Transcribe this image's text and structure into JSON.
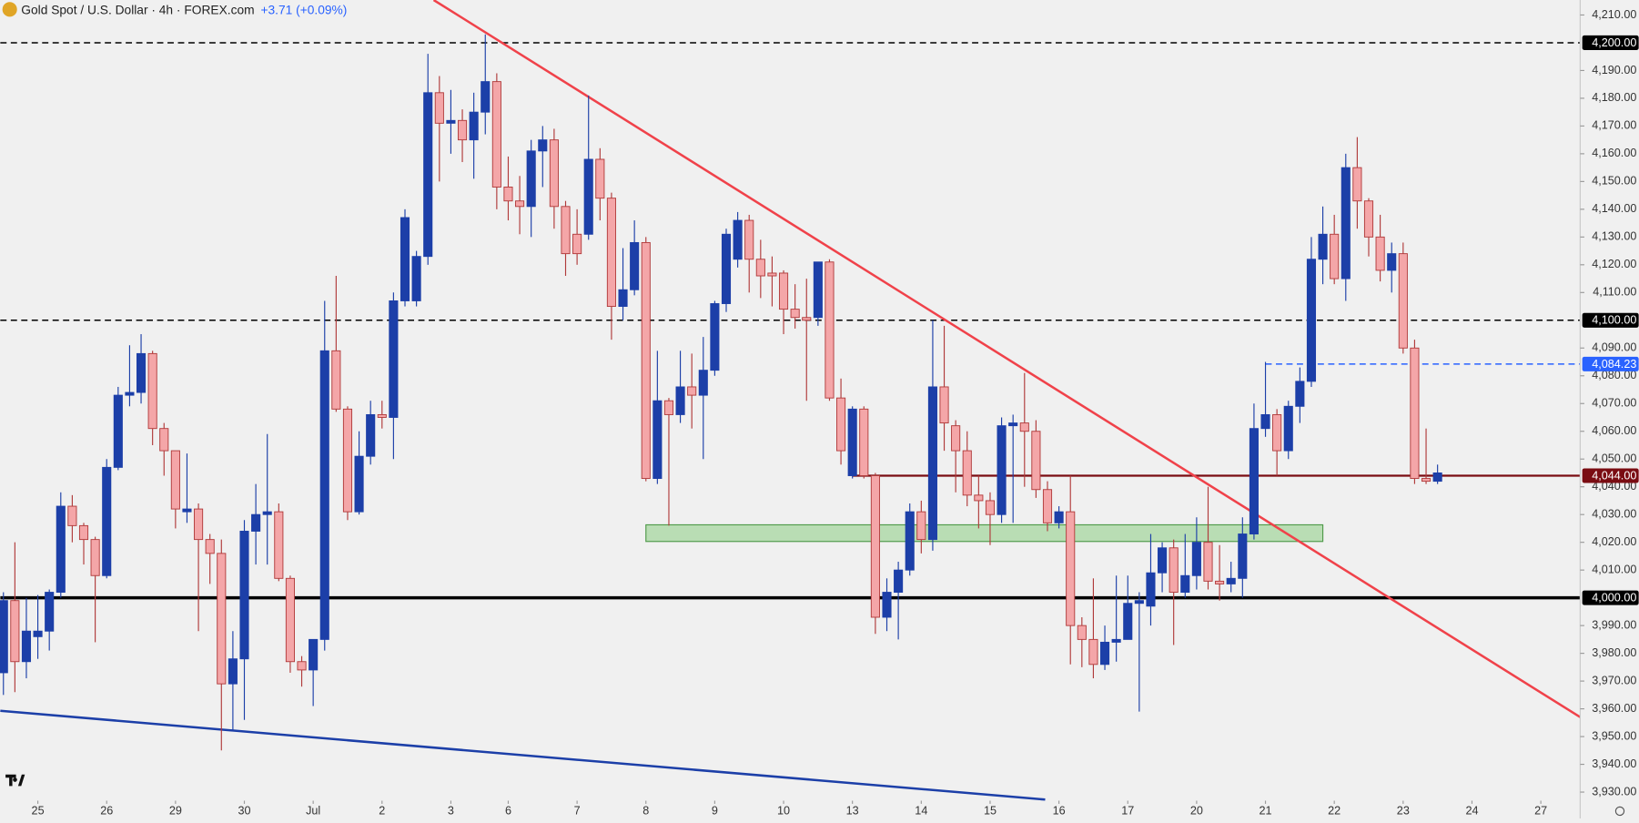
{
  "chart_data": {
    "type": "candlestick",
    "title": "Gold Spot / U.S. Dollar · 4h · FOREX.com",
    "change": "+3.71 (+0.09%)",
    "up_color": "#1c3fa8",
    "down_color": "#f4a6a8",
    "down_edge": "#b03a3a",
    "series": [
      {
        "open": [
          3973,
          3999,
          3977,
          3986,
          3988,
          4002,
          4033,
          4026,
          4021,
          4008,
          4047,
          4073,
          4074,
          4088,
          4061,
          4053,
          4031,
          4032,
          4021,
          4016,
          3969,
          3978,
          4024,
          4030,
          4031,
          4007,
          3977,
          3974,
          3985,
          4089,
          4068,
          4031,
          4051,
          4066,
          4065,
          4107,
          4107,
          4123,
          4182,
          4171,
          4172,
          4165,
          4175,
          4186,
          4148,
          4143,
          4141,
          4161,
          4165,
          4141,
          4131,
          4131,
          4158,
          4144,
          4105,
          4111,
          4128,
          4043,
          4071,
          4066,
          4076,
          4073,
          4082,
          4106,
          4122,
          4136,
          4122,
          4117,
          4117,
          4104,
          4101,
          4101,
          4121,
          4072,
          4044,
          4068,
          4044,
          3993,
          4002,
          4010,
          4031,
          4021,
          4076,
          4062,
          4053,
          4037,
          4035,
          4030,
          4062,
          4063,
          4060,
          4039,
          4027,
          4031,
          3990,
          3985,
          3976,
          3984,
          3985,
          3998,
          3997,
          4009,
          4018,
          4002,
          4008,
          4020,
          4006,
          4005,
          4007,
          4023,
          4061,
          4066,
          4053,
          4069,
          4078,
          4122,
          4131,
          4115,
          4155,
          4143,
          4130,
          4118,
          4124,
          4090,
          4043,
          4042
        ],
        "high": [
          4002,
          4020,
          4000,
          4001,
          4003,
          4038,
          4037,
          4027,
          4022,
          4050,
          4076,
          4091,
          4095,
          4089,
          4063,
          4053,
          4052,
          4034,
          4023,
          4021,
          3988,
          4028,
          4041,
          4059,
          4034,
          4008,
          3979,
          3985,
          4107,
          4116,
          4069,
          4060,
          4071,
          4071,
          4110,
          4140,
          4125,
          4196,
          4188,
          4183,
          4176,
          4182,
          4203,
          4189,
          4159,
          4152,
          4165,
          4170,
          4169,
          4143,
          4140,
          4181,
          4162,
          4146,
          4126,
          4136,
          4130,
          4089,
          4072,
          4089,
          4088,
          4094,
          4107,
          4133,
          4139,
          4138,
          4129,
          4123,
          4118,
          4113,
          4115,
          4121,
          4122,
          4079,
          4069,
          4069,
          4045,
          4007,
          4013,
          4034,
          4035,
          4100,
          4098,
          4064,
          4060,
          4044,
          4038,
          4065,
          4066,
          4081,
          4064,
          4042,
          4033,
          4044,
          3993,
          4007,
          3990,
          4008,
          4008,
          4002,
          4023,
          4020,
          4021,
          4023,
          4029,
          4040,
          4019,
          4013,
          4029,
          4070,
          4085,
          4068,
          4071,
          4083,
          4130,
          4141,
          4138,
          4160,
          4166,
          4144,
          4138,
          4128,
          4128,
          4093,
          4061,
          4048
        ],
        "low": [
          3965,
          3966,
          3971,
          3978,
          3981,
          4000,
          4020,
          4012,
          3984,
          4007,
          4046,
          4069,
          4070,
          4055,
          4044,
          4025,
          4027,
          3988,
          4005,
          3945,
          3952,
          3956,
          4012,
          4012,
          4006,
          3973,
          3968,
          3961,
          3981,
          4067,
          4028,
          4030,
          4048,
          4061,
          4050,
          4105,
          4105,
          4120,
          4150,
          4160,
          4157,
          4151,
          4167,
          4140,
          4136,
          4131,
          4130,
          4148,
          4133,
          4116,
          4120,
          4129,
          4136,
          4093,
          4100,
          4109,
          4042,
          4041,
          4026,
          4063,
          4061,
          4050,
          4080,
          4103,
          4119,
          4110,
          4108,
          4105,
          4095,
          4097,
          4071,
          4098,
          4071,
          4048,
          4043,
          4043,
          3987,
          3988,
          3985,
          4008,
          4016,
          4017,
          4053,
          4038,
          4033,
          4025,
          4019,
          4027,
          4027,
          4040,
          4036,
          4024,
          4025,
          3976,
          3975,
          3971,
          3974,
          3977,
          3985,
          3959,
          3990,
          4002,
          3983,
          4000,
          4003,
          4003,
          3999,
          4002,
          4000,
          4021,
          4058,
          4044,
          4050,
          4063,
          4076,
          4113,
          4113,
          4107,
          4133,
          4123,
          4114,
          4110,
          4088,
          4041,
          4041,
          4041
        ],
        "close": [
          3999,
          3977,
          3988,
          3988,
          4002,
          4033,
          4026,
          4021,
          4008,
          4047,
          4073,
          4074,
          4088,
          4061,
          4053,
          4032,
          4032,
          4021,
          4016,
          3969,
          3978,
          4024,
          4030,
          4031,
          4007,
          3977,
          3974,
          3985,
          4089,
          4068,
          4031,
          4051,
          4066,
          4065,
          4107,
          4137,
          4123,
          4182,
          4171,
          4172,
          4165,
          4175,
          4186,
          4148,
          4143,
          4141,
          4161,
          4165,
          4141,
          4124,
          4124,
          4158,
          4144,
          4105,
          4111,
          4128,
          4043,
          4071,
          4066,
          4076,
          4073,
          4082,
          4106,
          4131,
          4136,
          4122,
          4116,
          4116,
          4104,
          4101,
          4100,
          4121,
          4072,
          4053,
          4068,
          4044,
          3993,
          4002,
          4010,
          4031,
          4021,
          4076,
          4063,
          4053,
          4037,
          4035,
          4030,
          4062,
          4063,
          4060,
          4039,
          4027,
          4031,
          3990,
          3985,
          3976,
          3984,
          3985,
          3998,
          3999,
          4009,
          4018,
          4002,
          4008,
          4020,
          4006,
          4005,
          4007,
          4023,
          4061,
          4066,
          4053,
          4069,
          4078,
          4122,
          4131,
          4115,
          4155,
          4143,
          4130,
          4118,
          4124,
          4090,
          4043,
          4042,
          4045
        ]
      }
    ],
    "xlim": [
      -0.27,
      137.43
    ],
    "xticks": [
      {
        "value": 3,
        "label": "25"
      },
      {
        "value": 9,
        "label": "26"
      },
      {
        "value": 15,
        "label": "29"
      },
      {
        "value": 21,
        "label": "30"
      },
      {
        "value": 27,
        "label": "Jul"
      },
      {
        "value": 33,
        "label": "2"
      },
      {
        "value": 39,
        "label": "3"
      },
      {
        "value": 44,
        "label": "6"
      },
      {
        "value": 50,
        "label": "7"
      },
      {
        "value": 56,
        "label": "8"
      },
      {
        "value": 62,
        "label": "9"
      },
      {
        "value": 68,
        "label": "10"
      },
      {
        "value": 74,
        "label": "13"
      },
      {
        "value": 80,
        "label": "14"
      },
      {
        "value": 86,
        "label": "15"
      },
      {
        "value": 92,
        "label": "16"
      },
      {
        "value": 98,
        "label": "17"
      },
      {
        "value": 104,
        "label": "20"
      },
      {
        "value": 110,
        "label": "21"
      },
      {
        "value": 116,
        "label": "22"
      },
      {
        "value": 122,
        "label": "23"
      },
      {
        "value": 128,
        "label": "24"
      },
      {
        "value": 134,
        "label": "27"
      }
    ],
    "ylim": [
      3920.5,
      4215.4
    ],
    "yticks": [
      {
        "value": 3930,
        "label": "3,930.00"
      },
      {
        "value": 3940,
        "label": "3,940.00"
      },
      {
        "value": 3950,
        "label": "3,950.00"
      },
      {
        "value": 3960,
        "label": "3,960.00"
      },
      {
        "value": 3970,
        "label": "3,970.00"
      },
      {
        "value": 3980,
        "label": "3,980.00"
      },
      {
        "value": 3990,
        "label": "3,990.00"
      },
      {
        "value": 4010,
        "label": "4,010.00"
      },
      {
        "value": 4020,
        "label": "4,020.00"
      },
      {
        "value": 4030,
        "label": "4,030.00"
      },
      {
        "value": 4040,
        "label": "4,040.00"
      },
      {
        "value": 4050,
        "label": "4,050.00"
      },
      {
        "value": 4060,
        "label": "4,060.00"
      },
      {
        "value": 4070,
        "label": "4,070.00"
      },
      {
        "value": 4080,
        "label": "4,080.00"
      },
      {
        "value": 4090,
        "label": "4,090.00"
      },
      {
        "value": 4110,
        "label": "4,110.00"
      },
      {
        "value": 4120,
        "label": "4,120.00"
      },
      {
        "value": 4130,
        "label": "4,130.00"
      },
      {
        "value": 4140,
        "label": "4,140.00"
      },
      {
        "value": 4150,
        "label": "4,150.00"
      },
      {
        "value": 4160,
        "label": "4,160.00"
      },
      {
        "value": 4170,
        "label": "4,170.00"
      },
      {
        "value": 4180,
        "label": "4,180.00"
      },
      {
        "value": 4190,
        "label": "4,190.00"
      },
      {
        "value": 4210,
        "label": "4,210.00"
      }
    ],
    "levels": [
      {
        "value": 4200,
        "label": "4,200.00",
        "color": "#000000",
        "dash": true
      },
      {
        "value": 4100,
        "label": "4,100.00",
        "color": "#000000",
        "dash": true
      },
      {
        "value": 4084.23,
        "label": "4,084.23",
        "color": "#2962ff",
        "dash": true,
        "from": 110
      },
      {
        "value": 4044,
        "label": "4,044.00",
        "color": "#7a0c12",
        "dash": false,
        "from": 74
      },
      {
        "value": 4000,
        "label": "4,000.00",
        "color": "#000000",
        "dash": false
      }
    ],
    "zone": {
      "low": 4020.3,
      "high": 4026.3,
      "from": 56,
      "to": 115,
      "color": "#b9ddb4"
    },
    "trendlines": [
      {
        "x": [
          37.5,
          137.7
        ],
        "y": [
          4215.4,
          3956.3
        ],
        "color": "#f0424a"
      },
      {
        "x": [
          -0.27,
          90.8
        ],
        "y": [
          3959.3,
          3927.3
        ],
        "color": "#1c3fa8"
      }
    ]
  }
}
